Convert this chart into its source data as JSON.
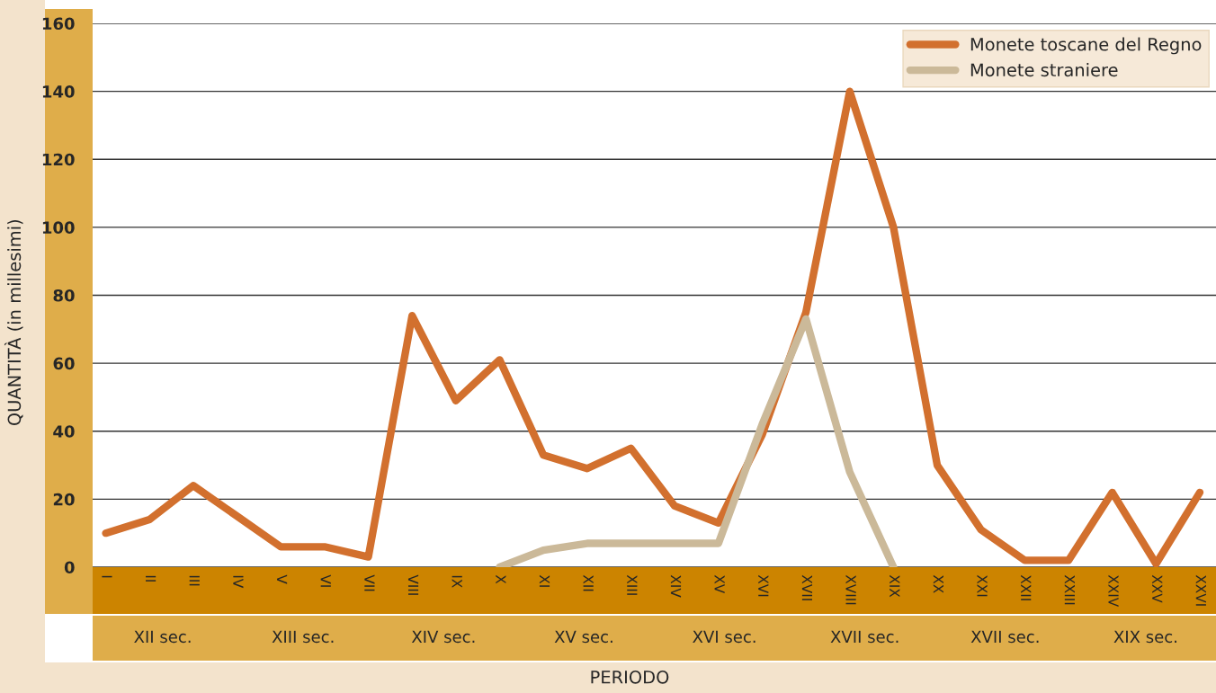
{
  "chart_data": {
    "type": "line",
    "categories": [
      "I",
      "II",
      "III",
      "IV",
      "V",
      "VI",
      "VII",
      "VIII",
      "IX",
      "X",
      "XI",
      "XII",
      "XIII",
      "XIV",
      "XV",
      "XVI",
      "XVII",
      "XVIII",
      "XIX",
      "XX",
      "XXI",
      "XXII",
      "XXIII",
      "XXIV",
      "XXV",
      "XXVI"
    ],
    "series": [
      {
        "name": "Monete toscane del Regno",
        "color": "#d2702e",
        "values": [
          10,
          14,
          24,
          15,
          6,
          6,
          3,
          74,
          49,
          61,
          33,
          29,
          35,
          18,
          13,
          39,
          75,
          140,
          100,
          30,
          11,
          2,
          2,
          22,
          1,
          22
        ]
      },
      {
        "name": "Monete straniere",
        "color": "#cbb999",
        "values": [
          null,
          null,
          null,
          null,
          null,
          null,
          null,
          null,
          null,
          0,
          5,
          7,
          7,
          7,
          7,
          42,
          73,
          28,
          0,
          null,
          null,
          null,
          null,
          null,
          null,
          null
        ]
      }
    ],
    "ylabel": "QUANTITÀ (in millesimi)",
    "xlabel": "PERIODO",
    "annotations": [
      "XII sec.",
      "XIII sec.",
      "XIV sec.",
      "XV sec.",
      "XVI sec.",
      "XVII sec.",
      "XVII sec.",
      "XIX sec."
    ],
    "ylim": [
      0,
      160
    ],
    "yticks": [
      0,
      20,
      40,
      60,
      80,
      100,
      120,
      140,
      160
    ],
    "grid": "y",
    "legend": "top right",
    "line_style": "solid",
    "marker": "none"
  }
}
